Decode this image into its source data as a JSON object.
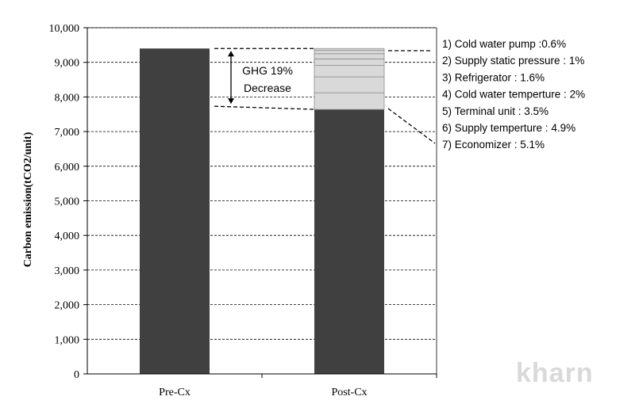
{
  "chart_data": {
    "type": "bar",
    "stacked": true,
    "categories": [
      "Pre-Cx",
      "Post-Cx"
    ],
    "ylabel": "Carbon emission(tCO2/unit)",
    "ylim": [
      0,
      10000
    ],
    "yticks": [
      0,
      1000,
      2000,
      3000,
      4000,
      5000,
      6000,
      7000,
      8000,
      9000,
      10000
    ],
    "ytick_labels": [
      "0",
      "1,000",
      "2,000",
      "3,000",
      "4,000",
      "5,000",
      "6,000",
      "7,000",
      "8,000",
      "9,000",
      "10,000"
    ],
    "grid": "horizontal-dashed",
    "totals": [
      9400,
      9400
    ],
    "base_values": [
      9400,
      7640
    ],
    "reduction_segments": [
      {
        "label": "1) Cold water pump :0.6%",
        "percent": 0.6
      },
      {
        "label": "2) Supply static pressure : 1%",
        "percent": 1.0
      },
      {
        "label": "3) Refrigerator : 1.6%",
        "percent": 1.6
      },
      {
        "label": "4) Cold water temperture : 2%",
        "percent": 2.0
      },
      {
        "label": "5) Terminal unit : 3.5%",
        "percent": 3.5
      },
      {
        "label": "6) Supply temperture : 4.9%",
        "percent": 4.9
      },
      {
        "label": "7) Economizer : 5.1%",
        "percent": 5.1
      }
    ],
    "annotation": {
      "line1": "GHG 19%",
      "line2": "Decrease"
    },
    "colors": {
      "base": "#404040",
      "segment": "#d9d9d9",
      "segment_edge": "#8c8c8c"
    }
  },
  "watermark": "kharn"
}
